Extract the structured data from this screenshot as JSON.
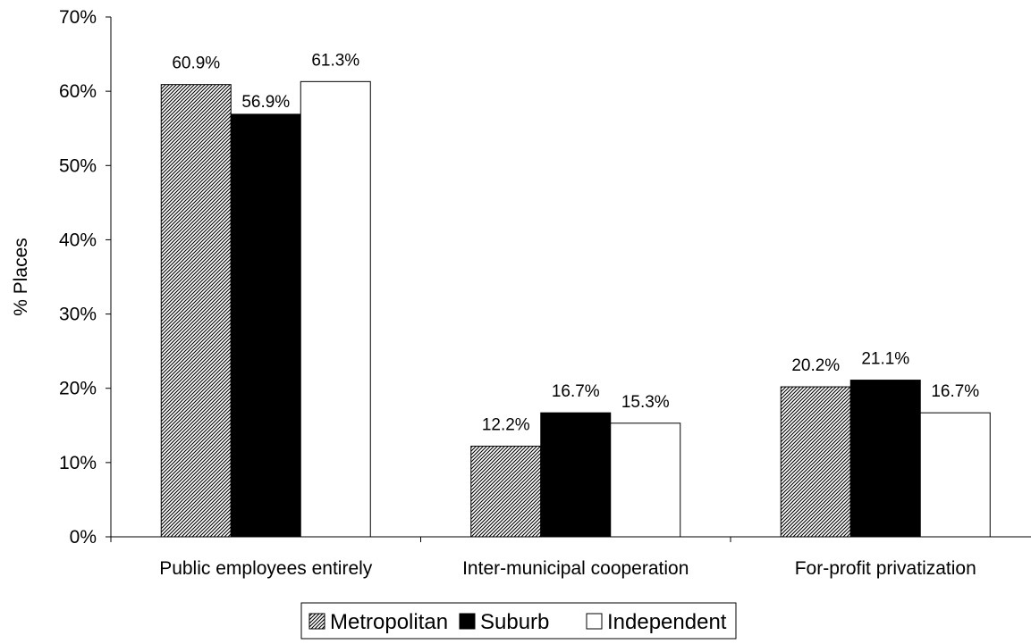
{
  "chart_data": {
    "type": "bar",
    "title": "",
    "xlabel": "",
    "ylabel": "% Places",
    "ylim": [
      0,
      70
    ],
    "yticks": [
      "0%",
      "10%",
      "20%",
      "30%",
      "40%",
      "50%",
      "60%",
      "70%"
    ],
    "categories": [
      "Public employees entirely",
      "Inter-municipal cooperation",
      "For-profit privatization"
    ],
    "series": [
      {
        "name": "Metropolitan",
        "values": [
          60.9,
          12.2,
          20.2
        ],
        "labels": [
          "60.9%",
          "12.2%",
          "20.2%"
        ],
        "fill": "hatched"
      },
      {
        "name": "Suburb",
        "values": [
          56.9,
          16.7,
          21.1
        ],
        "labels": [
          "56.9%",
          "16.7%",
          "21.1%"
        ],
        "fill": "#000000"
      },
      {
        "name": "Independent",
        "values": [
          61.3,
          15.3,
          16.7
        ],
        "labels": [
          "61.3%",
          "15.3%",
          "16.7%"
        ],
        "fill": "#ffffff"
      }
    ],
    "grid": false,
    "legend_position": "bottom"
  }
}
